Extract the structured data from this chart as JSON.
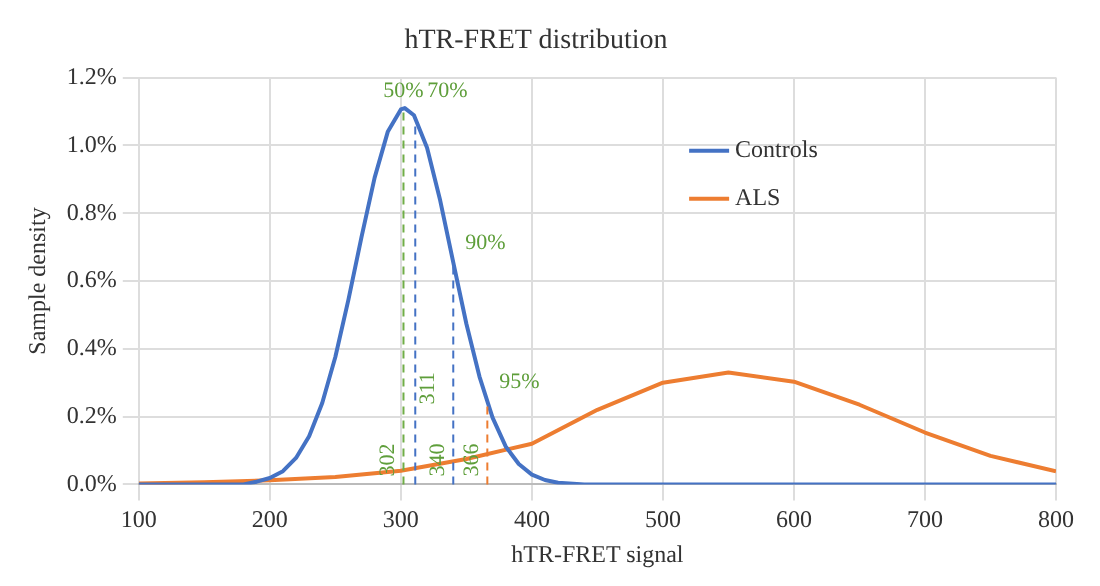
{
  "chart_data": {
    "type": "line",
    "title": "hTR-FRET distribution",
    "xlabel": "hTR-FRET signal",
    "ylabel": "Sample density",
    "xlim": [
      100,
      800
    ],
    "xticks": [
      100,
      200,
      300,
      400,
      500,
      600,
      700,
      800
    ],
    "ylim": [
      0,
      1.2
    ],
    "yticks": [
      {
        "value": 0,
        "label": "0.0%"
      },
      {
        "value": 0.2,
        "label": "0.2%"
      },
      {
        "value": 0.4,
        "label": "0.4%"
      },
      {
        "value": 0.6,
        "label": "0.6%"
      },
      {
        "value": 0.8,
        "label": "0.8%"
      },
      {
        "value": 1.0,
        "label": "1.0%"
      },
      {
        "value": 1.2,
        "label": "1.2%"
      }
    ],
    "grid": true,
    "legend": "right",
    "marker": "none",
    "line_style": "solid",
    "series": [
      {
        "name": "Controls",
        "color": "#4472c4",
        "x": [
          100,
          150,
          180,
          190,
          200,
          210,
          220,
          230,
          240,
          250,
          260,
          270,
          280,
          290,
          300,
          303,
          310,
          320,
          330,
          340,
          350,
          360,
          370,
          380,
          390,
          400,
          410,
          420,
          440,
          500,
          600,
          700,
          800
        ],
        "values": [
          0,
          0,
          0,
          0.008,
          0.019,
          0.039,
          0.078,
          0.142,
          0.24,
          0.376,
          0.545,
          0.73,
          0.905,
          1.04,
          1.106,
          1.11,
          1.089,
          0.993,
          0.838,
          0.655,
          0.474,
          0.318,
          0.197,
          0.112,
          0.06,
          0.029,
          0.013,
          0.005,
          0,
          0,
          0,
          0,
          0
        ]
      },
      {
        "name": "ALS",
        "color": "#ed7d31",
        "x": [
          100,
          150,
          200,
          250,
          300,
          350,
          400,
          450,
          500,
          550,
          600,
          650,
          700,
          750,
          800
        ],
        "values": [
          0.003,
          0.006,
          0.012,
          0.022,
          0.04,
          0.075,
          0.12,
          0.22,
          0.3,
          0.33,
          0.303,
          0.235,
          0.153,
          0.084,
          0.039
        ]
      }
    ],
    "ref_lines": [
      {
        "axis": "x",
        "value": 302,
        "label": "302",
        "color": "#70ad47",
        "line_style": "dashed"
      },
      {
        "axis": "x",
        "value": 311,
        "label": "311",
        "color": "#4472c4",
        "line_style": "dashed"
      },
      {
        "axis": "x",
        "value": 340,
        "label": "340",
        "color": "#4472c4",
        "line_style": "dashed"
      },
      {
        "axis": "x",
        "value": 366,
        "label": "366",
        "color": "#ed7d31",
        "line_style": "dashed"
      }
    ],
    "annotations": [
      "50%",
      "70%",
      "90%",
      "95%"
    ]
  }
}
